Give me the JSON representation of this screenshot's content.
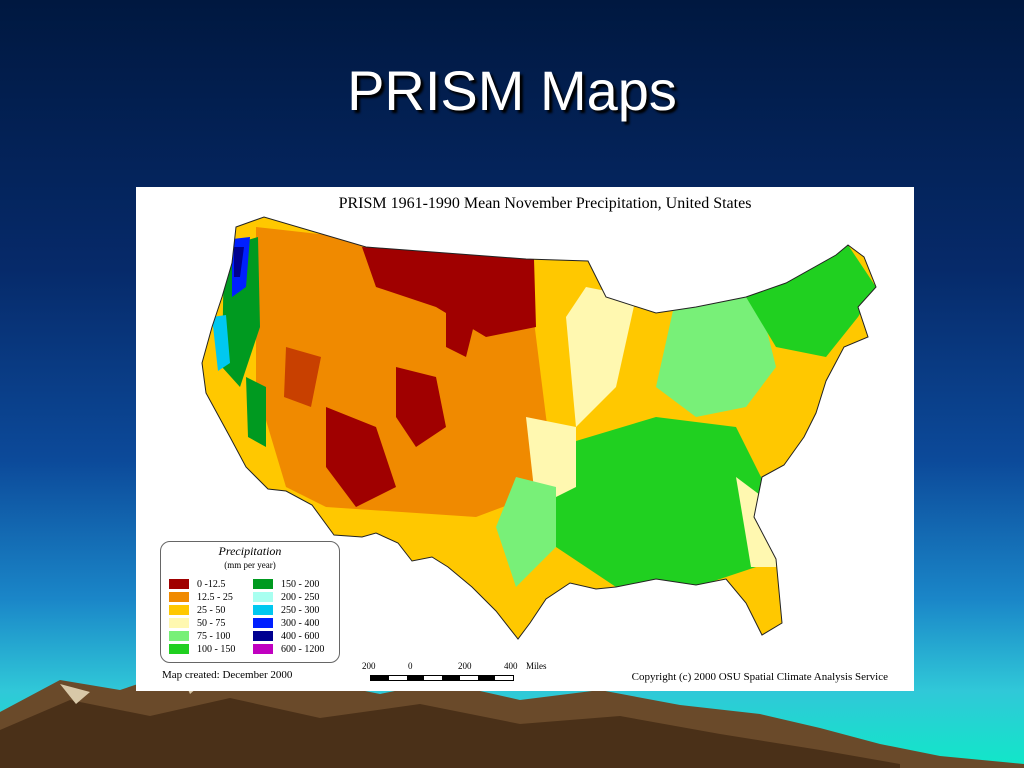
{
  "slide": {
    "title": "PRISM Maps"
  },
  "map": {
    "title": "PRISM 1961-1990 Mean November Precipitation, United States",
    "legend": {
      "title": "Precipitation",
      "subtitle": "(mm per year)",
      "items": [
        {
          "label": "0 -12.5",
          "color": "#a00000"
        },
        {
          "label": "12.5 - 25",
          "color": "#f08a00"
        },
        {
          "label": "25 - 50",
          "color": "#ffc800"
        },
        {
          "label": "50 - 75",
          "color": "#fff8b0"
        },
        {
          "label": "75 - 100",
          "color": "#78f078"
        },
        {
          "label": "100 - 150",
          "color": "#20d020"
        },
        {
          "label": "150 - 200",
          "color": "#009a20"
        },
        {
          "label": "200 - 250",
          "color": "#a8fff0"
        },
        {
          "label": "250 - 300",
          "color": "#00c8f0"
        },
        {
          "label": "300 - 400",
          "color": "#0020ff"
        },
        {
          "label": "400 - 600",
          "color": "#000090"
        },
        {
          "label": "600 - 1200",
          "color": "#c000c0"
        }
      ]
    },
    "scale": {
      "ticks": [
        "200",
        "0",
        "200",
        "400"
      ],
      "unit": "Miles"
    },
    "created": "Map created: December 2000",
    "copyright": "Copyright (c) 2000 OSU Spatial Climate Analysis Service"
  }
}
